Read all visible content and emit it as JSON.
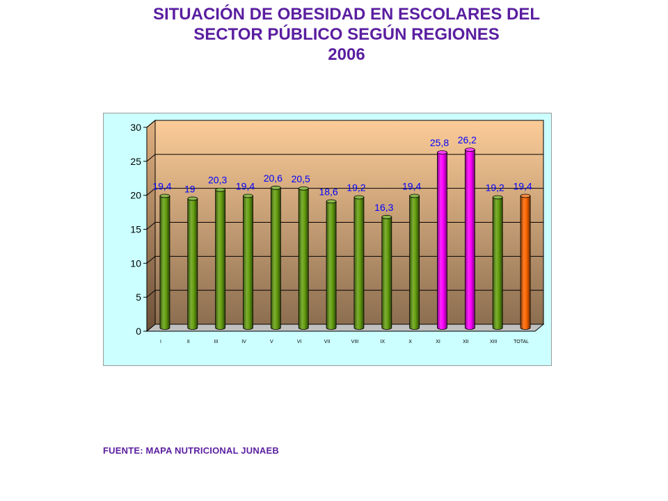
{
  "title_lines": [
    "SITUACIÓN DE OBESIDAD EN ESCOLARES DEL",
    "SECTOR PÚBLICO SEGÚN REGIONES",
    "2006"
  ],
  "source": "FUENTE: MAPA NUTRICIONAL JUNAEB",
  "chart_data": {
    "type": "bar",
    "title": "SITUACIÓN DE OBESIDAD EN ESCOLARES DEL SECTOR PÚBLICO SEGÚN REGIONES 2006",
    "categories": [
      "I",
      "II",
      "III",
      "IV",
      "V",
      "VI",
      "VII",
      "VIII",
      "IX",
      "X",
      "XI",
      "XII",
      "XIII",
      "TOTAL"
    ],
    "values": [
      19.4,
      19,
      20.3,
      19.4,
      20.6,
      20.5,
      18.6,
      19.2,
      16.3,
      19.4,
      25.8,
      26.2,
      19.2,
      19.4
    ],
    "data_labels": [
      "19,4",
      "19",
      "20,3",
      "19,4",
      "20,6",
      "20,5",
      "18,6",
      "19,2",
      "16,3",
      "19,4",
      "25,8",
      "26,2",
      "19,2",
      "19,4"
    ],
    "ylim": [
      0,
      30
    ],
    "yticks": [
      0,
      5,
      10,
      15,
      20,
      25,
      30
    ],
    "grid": true,
    "legend": "none",
    "xlabel": "",
    "ylabel": "",
    "colors": {
      "default": "#66a010",
      "highlight": "#ff00ff",
      "total": "#ff6600",
      "data_label": "#0000ff",
      "axis_text": "#000000",
      "plot_top": "#fccc98",
      "plot_bottom": "#8c6e50",
      "background": "#ccffff"
    },
    "bar_colors": [
      "default",
      "default",
      "default",
      "default",
      "default",
      "default",
      "default",
      "default",
      "default",
      "default",
      "highlight",
      "highlight",
      "default",
      "total"
    ]
  }
}
